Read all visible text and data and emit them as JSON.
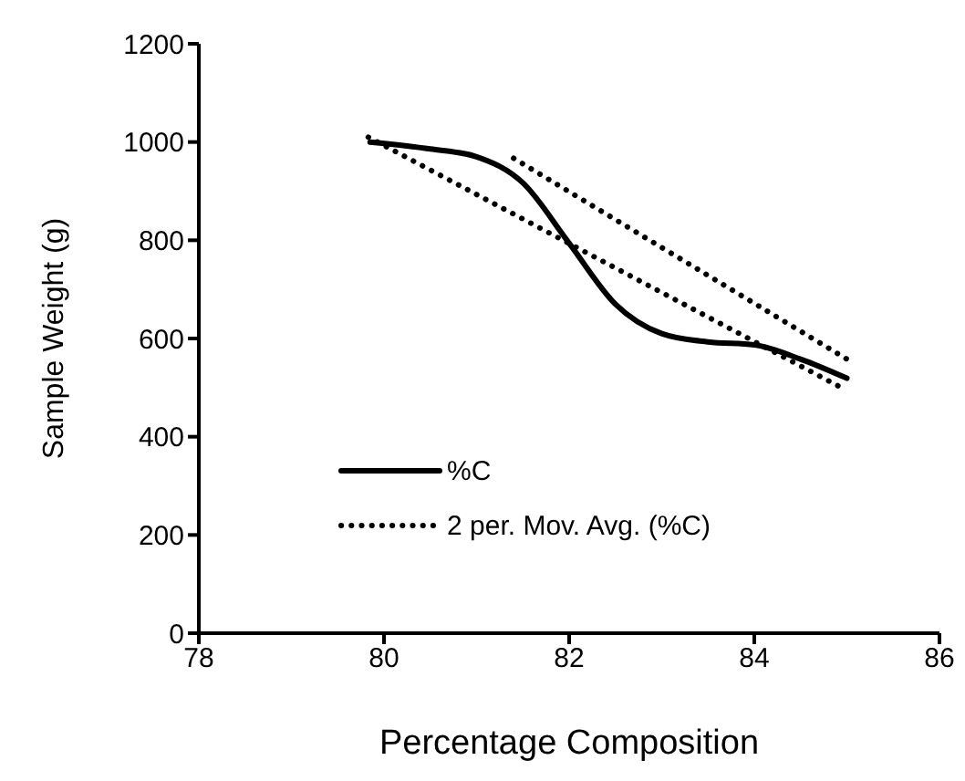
{
  "chart_data": {
    "type": "line",
    "xlabel": "Percentage Composition",
    "ylabel": "Sample Weight (g)",
    "xlim": [
      78,
      86
    ],
    "xticks": [
      78,
      80,
      82,
      84,
      86
    ],
    "ylim": [
      0,
      1200
    ],
    "yticks": [
      0,
      200,
      400,
      600,
      800,
      1000,
      1200
    ],
    "grid": false,
    "legend": "bottom left",
    "marker": "none",
    "series": [
      {
        "name": "%C",
        "color": "#000000",
        "line_style": "solid",
        "x": [
          79.85,
          80.5,
          81,
          81.5,
          82,
          82.5,
          83,
          83.5,
          84,
          84.5,
          85
        ],
        "values": [
          1000,
          986,
          970,
          917,
          794,
          670,
          610,
          593,
          587,
          558,
          519
        ]
      },
      {
        "name": "2 per. Mov. Avg. (%C)",
        "color": "#000000",
        "line_style": "dotted",
        "x": [
          81.4,
          85
        ],
        "values": [
          967,
          558
        ]
      },
      {
        "color": "#000000",
        "line_style": "dotted",
        "x": [
          79.83,
          84.97
        ],
        "values": [
          1010,
          497
        ]
      }
    ]
  }
}
